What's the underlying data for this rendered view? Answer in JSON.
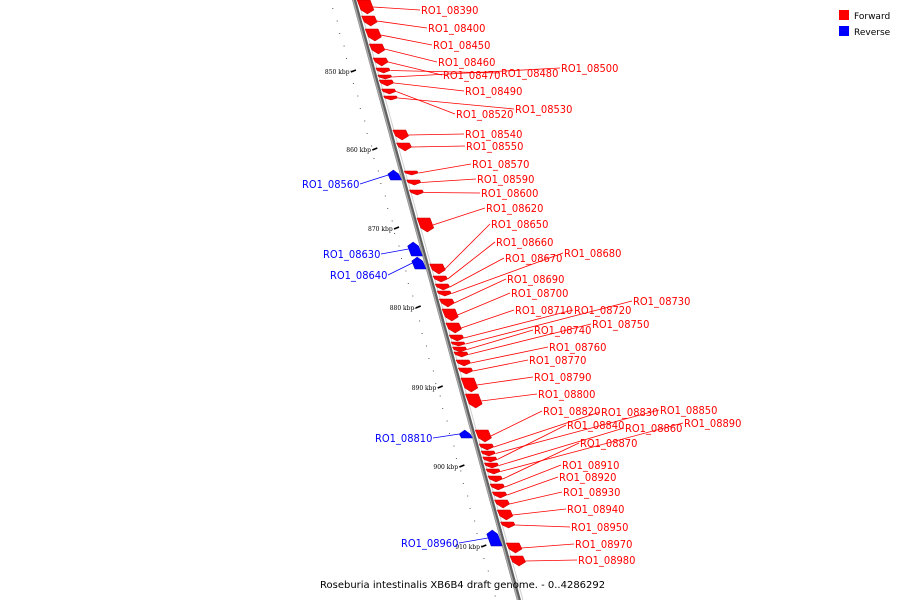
{
  "legend": [
    {
      "label": "Forward",
      "color": "#ff0000"
    },
    {
      "label": "Reverse",
      "color": "#0000ff"
    }
  ],
  "caption": "Roseburia intestinalis XB6B4 draft genome. - 0..4286292",
  "colors": {
    "forward": "#ff0000",
    "reverse": "#0000ff",
    "backbone": "#808080"
  },
  "ticks": [
    {
      "label": "850 kbp"
    },
    {
      "label": "860 kbp"
    },
    {
      "label": "870 kbp"
    },
    {
      "label": "880 kbp"
    },
    {
      "label": "890 kbp"
    },
    {
      "label": "900 kbp"
    },
    {
      "label": "910 kbp"
    }
  ],
  "genes": [
    {
      "name": "RO1_08390",
      "strand": "forward"
    },
    {
      "name": "RO1_08400",
      "strand": "forward"
    },
    {
      "name": "RO1_08450",
      "strand": "forward"
    },
    {
      "name": "RO1_08460",
      "strand": "forward"
    },
    {
      "name": "RO1_08470",
      "strand": "forward"
    },
    {
      "name": "RO1_08480",
      "strand": "forward"
    },
    {
      "name": "RO1_08500",
      "strand": "forward"
    },
    {
      "name": "RO1_08490",
      "strand": "forward"
    },
    {
      "name": "RO1_08520",
      "strand": "forward"
    },
    {
      "name": "RO1_08530",
      "strand": "forward"
    },
    {
      "name": "RO1_08540",
      "strand": "forward"
    },
    {
      "name": "RO1_08550",
      "strand": "forward"
    },
    {
      "name": "RO1_08570",
      "strand": "forward"
    },
    {
      "name": "RO1_08590",
      "strand": "forward"
    },
    {
      "name": "RO1_08600",
      "strand": "forward"
    },
    {
      "name": "RO1_08620",
      "strand": "forward"
    },
    {
      "name": "RO1_08650",
      "strand": "forward"
    },
    {
      "name": "RO1_08660",
      "strand": "forward"
    },
    {
      "name": "RO1_08670",
      "strand": "forward"
    },
    {
      "name": "RO1_08680",
      "strand": "forward"
    },
    {
      "name": "RO1_08690",
      "strand": "forward"
    },
    {
      "name": "RO1_08700",
      "strand": "forward"
    },
    {
      "name": "RO1_08710",
      "strand": "forward"
    },
    {
      "name": "RO1_08720",
      "strand": "forward"
    },
    {
      "name": "RO1_08730",
      "strand": "forward"
    },
    {
      "name": "RO1_08740",
      "strand": "forward"
    },
    {
      "name": "RO1_08750",
      "strand": "forward"
    },
    {
      "name": "RO1_08760",
      "strand": "forward"
    },
    {
      "name": "RO1_08770",
      "strand": "forward"
    },
    {
      "name": "RO1_08790",
      "strand": "forward"
    },
    {
      "name": "RO1_08800",
      "strand": "forward"
    },
    {
      "name": "RO1_08820",
      "strand": "forward"
    },
    {
      "name": "RO1_08830",
      "strand": "forward"
    },
    {
      "name": "RO1_08850",
      "strand": "forward"
    },
    {
      "name": "RO1_08840",
      "strand": "forward"
    },
    {
      "name": "RO1_08860",
      "strand": "forward"
    },
    {
      "name": "RO1_08890",
      "strand": "forward"
    },
    {
      "name": "RO1_08870",
      "strand": "forward"
    },
    {
      "name": "RO1_08910",
      "strand": "forward"
    },
    {
      "name": "RO1_08920",
      "strand": "forward"
    },
    {
      "name": "RO1_08930",
      "strand": "forward"
    },
    {
      "name": "RO1_08940",
      "strand": "forward"
    },
    {
      "name": "RO1_08950",
      "strand": "forward"
    },
    {
      "name": "RO1_08970",
      "strand": "forward"
    },
    {
      "name": "RO1_08980",
      "strand": "forward"
    },
    {
      "name": "RO1_08560",
      "strand": "reverse"
    },
    {
      "name": "RO1_08630",
      "strand": "reverse"
    },
    {
      "name": "RO1_08640",
      "strand": "reverse"
    },
    {
      "name": "RO1_08810",
      "strand": "reverse"
    },
    {
      "name": "RO1_08960",
      "strand": "reverse"
    }
  ]
}
